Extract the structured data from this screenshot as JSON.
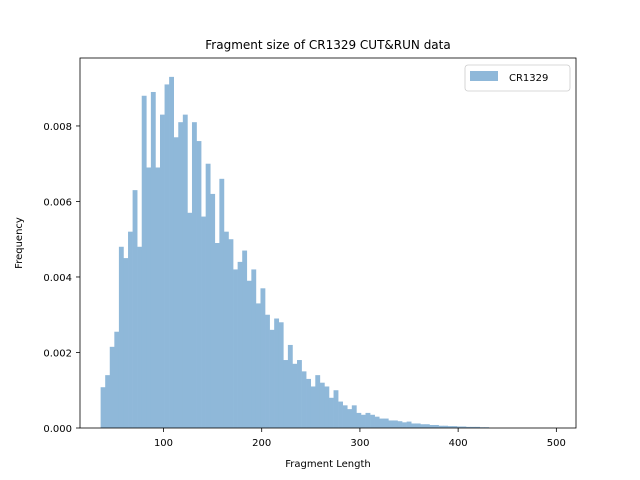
{
  "chart_data": {
    "type": "bar",
    "title": "Fragment size of CR1329 CUT&RUN data",
    "xlabel": "Fragment Length",
    "ylabel": "Frequency",
    "xlim": [
      15,
      520
    ],
    "ylim": [
      0,
      0.0098
    ],
    "xticks": [
      100,
      200,
      300,
      400,
      500
    ],
    "yticks": [
      0.0,
      0.002,
      0.004,
      0.006,
      0.008
    ],
    "ytick_labels": [
      "0.000",
      "0.002",
      "0.004",
      "0.006",
      "0.008"
    ],
    "legend": {
      "position": "upper right",
      "entries": [
        "CR1329"
      ]
    },
    "series": [
      {
        "name": "CR1329",
        "color": "#8fb8d9",
        "bin_width": 4.65,
        "bins_start": [
          36.0,
          40.65,
          45.3,
          49.95,
          54.6,
          59.25,
          63.9,
          68.55,
          73.2,
          77.85,
          82.5,
          87.15,
          91.8,
          96.45,
          101.1,
          105.75,
          110.4,
          115.05,
          119.7,
          124.35,
          129.0,
          133.65,
          138.3,
          142.95,
          147.6,
          152.25,
          156.9,
          161.55,
          166.2,
          170.85,
          175.5,
          180.15,
          184.8,
          189.45,
          194.1,
          198.75,
          203.4,
          208.05,
          212.7,
          217.35,
          222.0,
          226.65,
          231.3,
          235.95,
          240.6,
          245.25,
          249.9,
          254.55,
          259.2,
          263.85,
          268.5,
          273.15,
          277.8,
          282.45,
          287.1,
          291.75,
          296.4,
          301.05,
          305.7,
          310.35,
          315.0,
          319.65,
          324.3,
          328.95,
          333.6,
          338.25,
          342.9,
          347.55,
          352.2,
          356.85,
          361.5,
          366.15,
          370.8,
          375.45,
          380.1,
          384.75,
          389.4,
          394.05,
          398.7,
          403.35,
          408.0,
          412.65,
          417.3,
          421.95,
          426.6
        ],
        "values": [
          0.00108,
          0.0014,
          0.00215,
          0.00255,
          0.0048,
          0.0045,
          0.0052,
          0.0063,
          0.0048,
          0.0088,
          0.0069,
          0.0089,
          0.0069,
          0.0083,
          0.0091,
          0.0093,
          0.0077,
          0.0081,
          0.0083,
          0.0057,
          0.0081,
          0.0076,
          0.0056,
          0.007,
          0.0062,
          0.0049,
          0.0066,
          0.0052,
          0.005,
          0.0042,
          0.0044,
          0.0047,
          0.0039,
          0.0042,
          0.0033,
          0.0037,
          0.003,
          0.0026,
          0.0029,
          0.0028,
          0.0018,
          0.0022,
          0.0017,
          0.0018,
          0.0015,
          0.0013,
          0.0011,
          0.0014,
          0.0012,
          0.0011,
          0.0008,
          0.001,
          0.0007,
          0.0006,
          0.0005,
          0.0006,
          0.0004,
          0.00035,
          0.0004,
          0.00035,
          0.0003,
          0.00025,
          0.00025,
          0.0002,
          0.0002,
          0.00018,
          0.00015,
          0.00017,
          0.00012,
          0.00012,
          0.0001,
          0.0001,
          8e-05,
          8e-05,
          6e-05,
          6e-05,
          5e-05,
          5e-05,
          4e-05,
          4e-05,
          3e-05,
          3e-05,
          3e-05,
          2e-05,
          2e-05
        ]
      }
    ]
  }
}
